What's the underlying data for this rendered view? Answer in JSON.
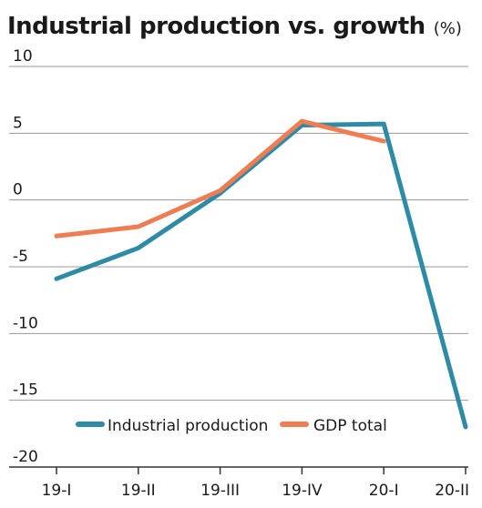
{
  "chart_data": {
    "type": "line",
    "title": "Industrial production vs. growth",
    "unit": "(%)",
    "categories": [
      "19-I",
      "19-II",
      "19-III",
      "19-IV",
      "20-I",
      "20-II"
    ],
    "ylim": [
      -20,
      10
    ],
    "yticks": [
      {
        "value": 10,
        "label": "10"
      },
      {
        "value": 5,
        "label": "5"
      },
      {
        "value": 0,
        "label": "0"
      },
      {
        "value": -5,
        "label": "-5"
      },
      {
        "value": -10,
        "label": "-10"
      },
      {
        "value": -15,
        "label": "-15"
      },
      {
        "value": -20,
        "label": "-20"
      }
    ],
    "grid": true,
    "legend_position": "bottom",
    "series": [
      {
        "name": "Industrial production",
        "color": "#2e8ba6",
        "values": [
          -5.9,
          -3.6,
          0.5,
          5.6,
          5.7,
          -17.0
        ]
      },
      {
        "name": "GDP total",
        "color": "#ef7c52",
        "values": [
          -2.7,
          -2.0,
          0.7,
          5.9,
          4.4,
          null
        ]
      }
    ]
  }
}
